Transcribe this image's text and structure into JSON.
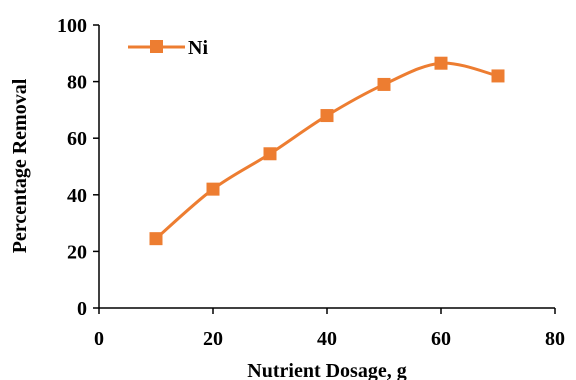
{
  "chart_data": {
    "type": "line",
    "xlabel": "Nutrient Dosage, g",
    "ylabel": "Percentage Removal",
    "xlim": [
      0,
      80
    ],
    "ylim": [
      0,
      100
    ],
    "x_ticks": [
      "0",
      "20",
      "40",
      "60",
      "80"
    ],
    "y_ticks": [
      "0",
      "20",
      "40",
      "60",
      "80",
      "100"
    ],
    "grid": false,
    "legend_position": "top-left",
    "smooth": true,
    "series": [
      {
        "name": "Ni",
        "color": "#ED7D31",
        "marker": "square",
        "x": [
          10,
          20,
          30,
          40,
          50,
          60,
          70
        ],
        "y": [
          24.5,
          42,
          54.5,
          68,
          79,
          86.5,
          82
        ]
      }
    ]
  }
}
